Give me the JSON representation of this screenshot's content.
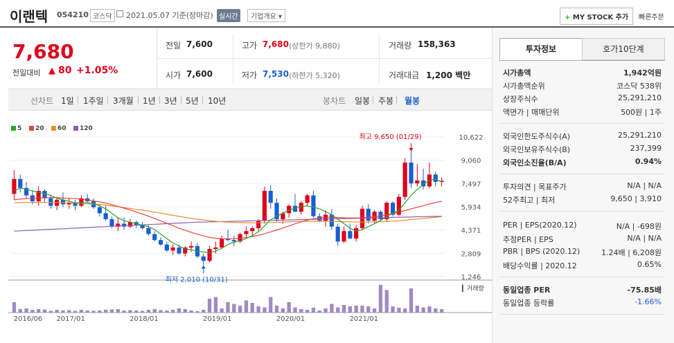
{
  "header": {
    "name": "이랜텍",
    "code": "054210",
    "market": "코스닥",
    "date": "2021.05.07",
    "date_suffix": "기준(장마감)",
    "realtime": "실시간",
    "corp_info": "기업개요",
    "mystock": "MY STOCK 추가",
    "quick_order": "빠른주문"
  },
  "price": {
    "current": "7,680",
    "change_label": "전일대비",
    "change": "80",
    "change_pct": "+1.05%"
  },
  "info": {
    "prev_label": "전일",
    "prev": "7,600",
    "high_label": "고가",
    "high": "7,680",
    "upper_label": "(상한가",
    "upper": "9,880)",
    "volume_label": "거래량",
    "volume": "158,363",
    "open_label": "시가",
    "open": "7,600",
    "low_label": "저가",
    "low": "7,530",
    "lower_label": "(하한가",
    "lower": "5,320)",
    "amount_label": "거래대금",
    "amount": "1,200",
    "amount_unit": "백만"
  },
  "periods": {
    "line_label": "선차트",
    "items": [
      "1일",
      "1주일",
      "3개월",
      "1년",
      "3년",
      "5년",
      "10년"
    ],
    "candle_label": "봉차트",
    "candle_items": [
      "일봉",
      "주봉",
      "월봉"
    ],
    "active_candle": "월봉"
  },
  "chart_data": {
    "type": "candlestick",
    "legend": [
      {
        "name": "5",
        "color": "#2aa52a"
      },
      {
        "name": "20",
        "color": "#e8433a"
      },
      {
        "name": "60",
        "color": "#f08b2a"
      },
      {
        "name": "120",
        "color": "#8e5bb5"
      }
    ],
    "y_ticks": [
      10622,
      9060,
      7497,
      5934,
      4371,
      2809,
      1246
    ],
    "x_ticks": [
      "2016/06",
      "2017/01",
      "2018/01",
      "2019/01",
      "2020/01",
      "2021/01"
    ],
    "high_annotation": "최고 9,650 (01/29)",
    "low_annotation": "최저 2,010 (10/31)",
    "volume_label": "거래량",
    "ylim": [
      1246,
      10622
    ],
    "candles": [
      [
        6800,
        8400,
        6400,
        7800
      ],
      [
        7800,
        8100,
        6900,
        7200
      ],
      [
        7200,
        7600,
        6500,
        6700
      ],
      [
        6700,
        7000,
        6100,
        6300
      ],
      [
        6300,
        7300,
        6000,
        7000
      ],
      [
        7000,
        7100,
        6200,
        6500
      ],
      [
        6500,
        6700,
        5800,
        6000
      ],
      [
        6000,
        6600,
        5700,
        6400
      ],
      [
        6400,
        6900,
        5900,
        6100
      ],
      [
        6100,
        6500,
        5800,
        6200
      ],
      [
        6200,
        6400,
        5700,
        6000
      ],
      [
        6000,
        6700,
        5900,
        6500
      ],
      [
        6500,
        6800,
        6200,
        6300
      ],
      [
        6300,
        6500,
        5800,
        5900
      ],
      [
        5900,
        6100,
        5300,
        5500
      ],
      [
        5500,
        6000,
        5000,
        5100
      ],
      [
        5100,
        5300,
        4500,
        4600
      ],
      [
        4600,
        5200,
        4300,
        4800
      ],
      [
        4800,
        5200,
        4400,
        4600
      ],
      [
        4600,
        5100,
        4500,
        4900
      ],
      [
        4900,
        5000,
        4500,
        4700
      ],
      [
        4700,
        4900,
        4400,
        4500
      ],
      [
        4500,
        4700,
        4000,
        4100
      ],
      [
        4100,
        4300,
        3600,
        3700
      ],
      [
        3700,
        3900,
        3300,
        3400
      ],
      [
        3400,
        3600,
        2900,
        3000
      ],
      [
        3000,
        3400,
        2700,
        3200
      ],
      [
        3200,
        3400,
        2700,
        2800
      ],
      [
        2800,
        3300,
        2600,
        3200
      ],
      [
        3200,
        3600,
        2900,
        3300
      ],
      [
        3300,
        3500,
        2500,
        2600
      ],
      [
        2600,
        2800,
        2010,
        2300
      ],
      [
        2300,
        3300,
        2200,
        3100
      ],
      [
        3100,
        3600,
        2800,
        3200
      ],
      [
        3200,
        4000,
        3100,
        3800
      ],
      [
        3800,
        4400,
        3600,
        3700
      ],
      [
        3700,
        4000,
        3300,
        3600
      ],
      [
        3600,
        4200,
        3500,
        4100
      ],
      [
        4100,
        4600,
        3900,
        4300
      ],
      [
        4300,
        4600,
        4000,
        4500
      ],
      [
        4500,
        5100,
        4300,
        5000
      ],
      [
        5000,
        7300,
        4800,
        7000
      ],
      [
        7000,
        7400,
        5800,
        6200
      ],
      [
        6200,
        6500,
        4900,
        5100
      ],
      [
        5100,
        5600,
        4800,
        5500
      ],
      [
        5500,
        6100,
        5200,
        6000
      ],
      [
        6000,
        6800,
        5600,
        5600
      ],
      [
        5600,
        6300,
        5400,
        6200
      ],
      [
        6200,
        6800,
        6000,
        6700
      ],
      [
        6700,
        7000,
        5200,
        5300
      ],
      [
        5300,
        5500,
        4900,
        5000
      ],
      [
        5000,
        5700,
        4600,
        5400
      ],
      [
        5400,
        5800,
        4400,
        4600
      ],
      [
        4600,
        4800,
        3300,
        3600
      ],
      [
        3600,
        4600,
        3500,
        4300
      ],
      [
        4300,
        4800,
        3800,
        3800
      ],
      [
        3800,
        4700,
        3600,
        4500
      ],
      [
        4500,
        6000,
        4400,
        5800
      ],
      [
        5800,
        6100,
        4800,
        5000
      ],
      [
        5000,
        5700,
        4800,
        5600
      ],
      [
        5600,
        5700,
        5000,
        5100
      ],
      [
        5100,
        6300,
        4900,
        6200
      ],
      [
        6200,
        6300,
        5300,
        5400
      ],
      [
        5400,
        6800,
        5300,
        6600
      ],
      [
        6600,
        9200,
        6400,
        8900
      ],
      [
        8900,
        9650,
        7200,
        7500
      ],
      [
        7500,
        8800,
        7300,
        7700
      ],
      [
        7700,
        8500,
        7100,
        7300
      ],
      [
        7300,
        8900,
        7200,
        8100
      ],
      [
        8100,
        8300,
        7300,
        7600
      ],
      [
        7600,
        7900,
        7300,
        7680
      ]
    ],
    "volumes": [
      30,
      10,
      12,
      8,
      10,
      9,
      5,
      8,
      6,
      7,
      5,
      8,
      6,
      5,
      6,
      8,
      9,
      10,
      6,
      7,
      6,
      5,
      8,
      10,
      7,
      6,
      8,
      12,
      10,
      6,
      4,
      8,
      40,
      45,
      12,
      30,
      25,
      20,
      35,
      28,
      18,
      15,
      45,
      20,
      12,
      30,
      15,
      10,
      8,
      14,
      6,
      12,
      25,
      15,
      22,
      18,
      20,
      20,
      18,
      12,
      80,
      65,
      18,
      14,
      12,
      70,
      20,
      15,
      18,
      12,
      10
    ],
    "ma5": [
      7000,
      7200,
      7100,
      7000,
      6900,
      6800,
      6700,
      6500,
      6400,
      6300,
      6200,
      6200,
      6200,
      6150,
      6000,
      5800,
      5500,
      5200,
      5000,
      4900,
      4800,
      4700,
      4600,
      4400,
      4100,
      3800,
      3500,
      3300,
      3100,
      3050,
      2950,
      2900,
      2850,
      2950,
      3150,
      3400,
      3550,
      3650,
      3800,
      4000,
      4250,
      4650,
      5050,
      5300,
      5500,
      5700,
      5850,
      5950,
      6000,
      5900,
      5800,
      5600,
      5400,
      5100,
      4800,
      4500,
      4300,
      4400,
      4600,
      4800,
      5000,
      5300,
      5500,
      5700,
      6200,
      6700,
      7100,
      7450,
      7700,
      7800,
      7600
    ],
    "ma20": [
      6400,
      6450,
      6480,
      6500,
      6520,
      6540,
      6550,
      6540,
      6520,
      6500,
      6480,
      6440,
      6400,
      6330,
      6260,
      6180,
      6080,
      5960,
      5840,
      5720,
      5580,
      5440,
      5300,
      5140,
      4980,
      4820,
      4660,
      4500,
      4350,
      4220,
      4090,
      3980,
      3880,
      3820,
      3790,
      3780,
      3790,
      3820,
      3870,
      3940,
      4020,
      4130,
      4250,
      4380,
      4510,
      4650,
      4790,
      4920,
      5040,
      5130,
      5190,
      5220,
      5230,
      5210,
      5190,
      5180,
      5180,
      5190,
      5220,
      5270,
      5330,
      5400,
      5480,
      5570,
      5680,
      5790,
      5900,
      6010,
      6120,
      6220,
      6300
    ],
    "ma60": [
      6200,
      6210,
      6220,
      6230,
      6230,
      6230,
      6230,
      6220,
      6210,
      6200,
      6190,
      6170,
      6150,
      6120,
      6090,
      6050,
      6000,
      5940,
      5880,
      5820,
      5760,
      5700,
      5640,
      5570,
      5500,
      5430,
      5360,
      5290,
      5220,
      5160,
      5100,
      5050,
      5000,
      4960,
      4930,
      4900,
      4880,
      4870,
      4860,
      4860,
      4860,
      4870,
      4880,
      4900,
      4910,
      4930,
      4940,
      4950,
      4960,
      4960,
      4960,
      4960,
      4950,
      4940,
      4930,
      4920,
      4910,
      4910,
      4910,
      4920,
      4930,
      4950,
      4970,
      5000,
      5030,
      5070,
      5110,
      5150,
      5190,
      5230,
      5270
    ],
    "ma120": [
      4300,
      4320,
      4340,
      4360,
      4380,
      4400,
      4420,
      4440,
      4460,
      4480,
      4500,
      4520,
      4540,
      4560,
      4580,
      4600,
      4620,
      4640,
      4660,
      4680,
      4700,
      4720,
      4740,
      4760,
      4780,
      4800,
      4820,
      4840,
      4860,
      4880,
      4900,
      4910,
      4920,
      4930,
      4940,
      4950,
      4960,
      4970,
      4980,
      4990,
      5000,
      5010,
      5020,
      5030,
      5040,
      5050,
      5060,
      5070,
      5080,
      5090,
      5100,
      5110,
      5120,
      5130,
      5140,
      5150,
      5160,
      5170,
      5180,
      5190,
      5200,
      5210,
      5220,
      5230,
      5240,
      5250,
      5260,
      5270,
      5280,
      5290,
      5300
    ]
  },
  "side": {
    "tab_invest": "투자정보",
    "tab_quote": "호가10단계",
    "rows": [
      {
        "label": "시가총액",
        "value": "1,942억원",
        "bold": true
      },
      {
        "label": "시가총액순위",
        "value": "코스닥 538위"
      },
      {
        "label": "상장주식수",
        "value": "25,291,210"
      },
      {
        "label": "액면가 | 매매단위",
        "value": "500원 | 1주"
      }
    ],
    "foreign_rows": [
      {
        "label": "외국인한도주식수(A)",
        "value": "25,291,210"
      },
      {
        "label": "외국인보유주식수(B)",
        "value": "237,399"
      },
      {
        "label": "외국인소진율(B/A)",
        "value": "0.94%",
        "bold": true
      }
    ],
    "opinion_rows": [
      {
        "label": "투자의견 | 목표주가",
        "value": "N/A | N/A"
      },
      {
        "label": "52주최고 | 최저",
        "value": "9,650 | 3,910"
      }
    ],
    "per_rows": [
      {
        "label": "PER | EPS(2020.12)",
        "value": "N/A | -698원"
      },
      {
        "label": "추정PER | EPS",
        "value": "N/A | N/A"
      },
      {
        "label": "PBR | BPS (2020.12)",
        "value": "1.24배 | 6,208원"
      },
      {
        "label": "배당수익률 | 2020.12",
        "value": "0.65%"
      }
    ],
    "industry_rows": [
      {
        "label": "동일업종 PER",
        "value": "-75.85배",
        "bold": true
      },
      {
        "label": "동일업종 등락률",
        "value": "-1.66%",
        "blue": true
      }
    ]
  }
}
